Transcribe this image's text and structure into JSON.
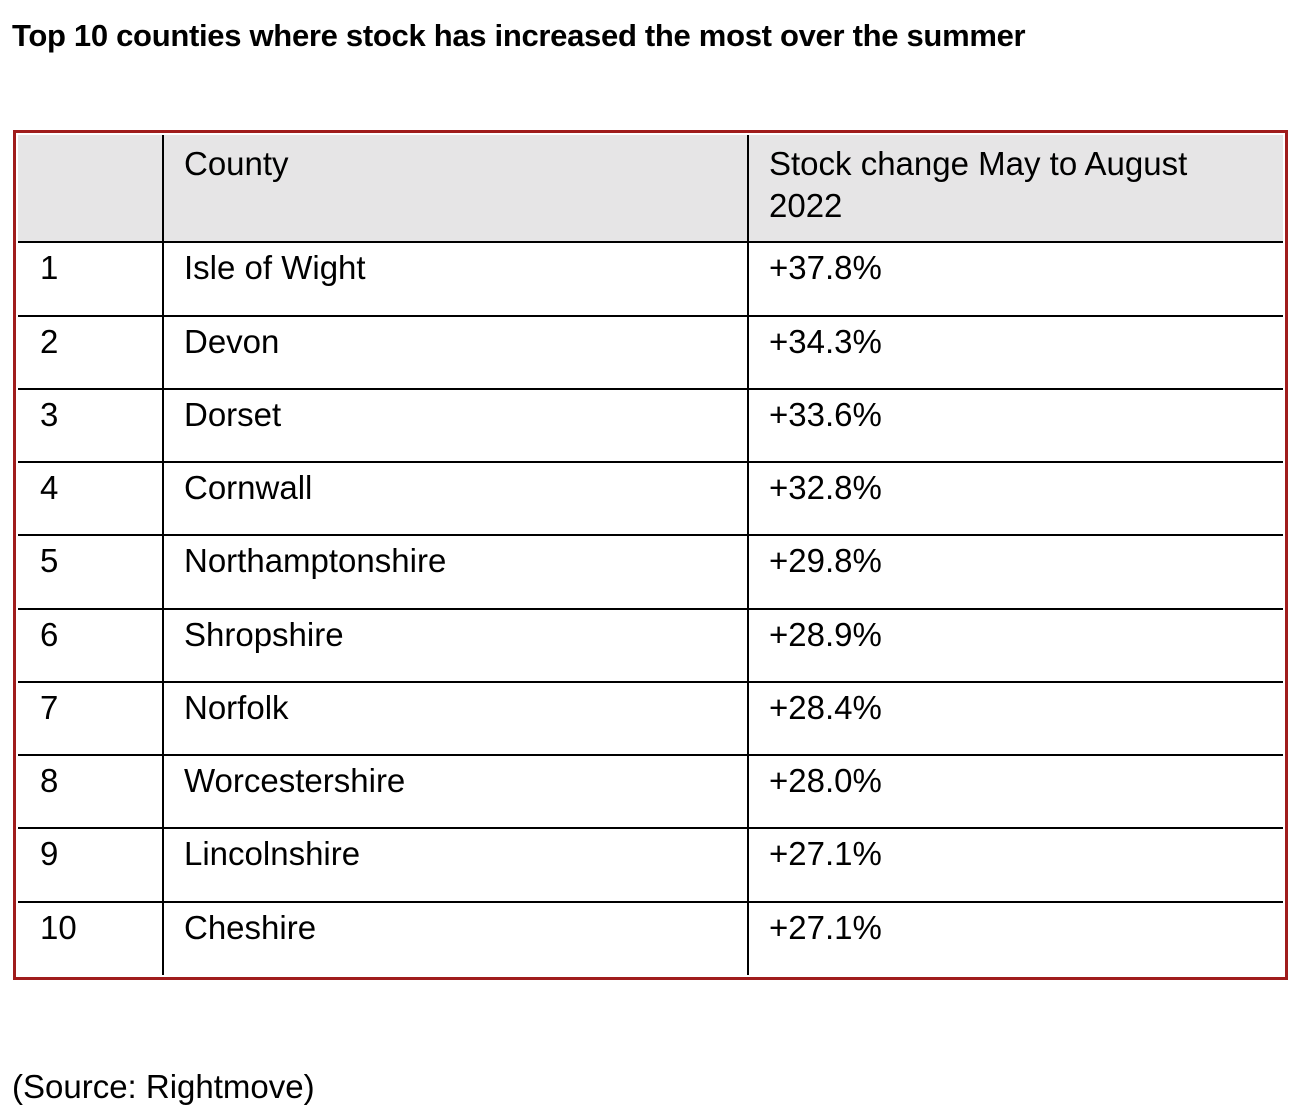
{
  "title": "Top 10 counties where stock has increased the most over the summer",
  "table": {
    "headers": [
      "",
      "County",
      "Stock change May to August 2022"
    ],
    "rows": [
      {
        "rank": "1",
        "county": "Isle of Wight",
        "change": "+37.8%"
      },
      {
        "rank": "2",
        "county": "Devon",
        "change": "+34.3%"
      },
      {
        "rank": "3",
        "county": "Dorset",
        "change": "+33.6%"
      },
      {
        "rank": "4",
        "county": "Cornwall",
        "change": "+32.8%"
      },
      {
        "rank": "5",
        "county": "Northamptonshire",
        "change": "+29.8%"
      },
      {
        "rank": "6",
        "county": "Shropshire",
        "change": "+28.9%"
      },
      {
        "rank": "7",
        "county": "Norfolk",
        "change": "+28.4%"
      },
      {
        "rank": "8",
        "county": "Worcestershire",
        "change": "+28.0%"
      },
      {
        "rank": "9",
        "county": "Lincolnshire",
        "change": "+27.1%"
      },
      {
        "rank": "10",
        "county": "Cheshire",
        "change": "+27.1%"
      }
    ]
  },
  "source": "(Source: Rightmove)",
  "colors": {
    "frame_border": "#a01c1c",
    "header_background": "#e6e5e6"
  }
}
